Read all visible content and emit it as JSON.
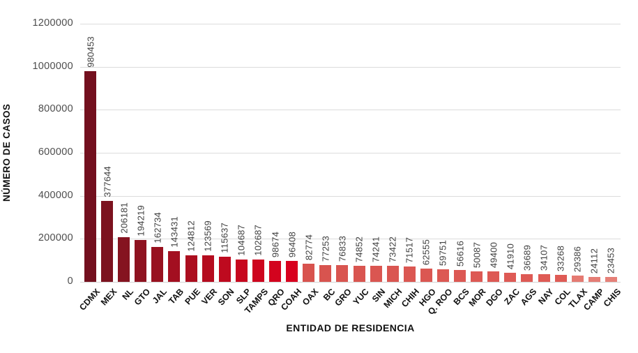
{
  "chart_data": {
    "type": "bar",
    "title": "",
    "xlabel": "ENTIDAD DE RESIDENCIA",
    "ylabel": "NÚMERO DE CASOS",
    "ylim": [
      0,
      1200000
    ],
    "grid": true,
    "legend": "none",
    "yticks": [
      {
        "value": 0,
        "label": "0"
      },
      {
        "value": 200000,
        "label": "200000"
      },
      {
        "value": 400000,
        "label": "400000"
      },
      {
        "value": 600000,
        "label": "600000"
      },
      {
        "value": 800000,
        "label": "800000"
      },
      {
        "value": 1000000,
        "label": "1000000"
      },
      {
        "value": 1200000,
        "label": "1200000"
      }
    ],
    "categories": [
      "CDMX",
      "MEX",
      "NL",
      "GTO",
      "JAL",
      "TAB",
      "PUE",
      "VER",
      "SON",
      "SLP",
      "TAMPS",
      "QRO",
      "COAH",
      "OAX",
      "BC",
      "GRO",
      "YUC",
      "SIN",
      "MICH",
      "CHIH",
      "HGO",
      "Q. ROO",
      "BCS",
      "MOR",
      "DGO",
      "ZAC",
      "AGS",
      "NAY",
      "COL",
      "TLAX",
      "CAMP",
      "CHIS"
    ],
    "values": [
      980453,
      377644,
      206181,
      194219,
      162734,
      143431,
      124812,
      123569,
      115637,
      104687,
      102687,
      98674,
      96408,
      82774,
      77253,
      76833,
      74852,
      74241,
      73422,
      71517,
      62555,
      59751,
      56616,
      50087,
      49400,
      41910,
      36689,
      34107,
      33268,
      29386,
      24112,
      23453
    ],
    "value_labels": [
      "980453",
      "377644",
      "206181",
      "194219",
      "162734",
      "143431",
      "124812",
      "123569",
      "115637",
      "104687",
      "102687",
      "98674",
      "96408",
      "82774",
      "77253",
      "76833",
      "74852",
      "74241",
      "73422",
      "71517",
      "62555",
      "59751",
      "56616",
      "50087",
      "49400",
      "41910",
      "36689",
      "34107",
      "33268",
      "29386",
      "24112",
      "23453"
    ],
    "bar_colors": [
      "#73101E",
      "#7C121F",
      "#851320",
      "#8E1220",
      "#98111F",
      "#A30F20",
      "#AC0E1F",
      "#B50C1F",
      "#BE0A1F",
      "#C7071E",
      "#CD051E",
      "#D3031E",
      "#D8001E",
      "#D8534E",
      "#D8544F",
      "#D95550",
      "#D95550",
      "#DA5651",
      "#DA5651",
      "#DB5752",
      "#DB5752",
      "#DC5853",
      "#DC5853",
      "#DD5954",
      "#DD5954",
      "#DE5A55",
      "#DE5A55",
      "#DF5B55",
      "#DF5B55",
      "#E57A72",
      "#E57D75",
      "#E68078"
    ]
  },
  "colors": {
    "background": "#ffffff",
    "gridline": "#dcdcdc",
    "axis_tick_text": "#4d4d4d",
    "value_label_text": "#3f3f3f",
    "category_label_text": "#111111",
    "axis_title_text": "#111111"
  }
}
